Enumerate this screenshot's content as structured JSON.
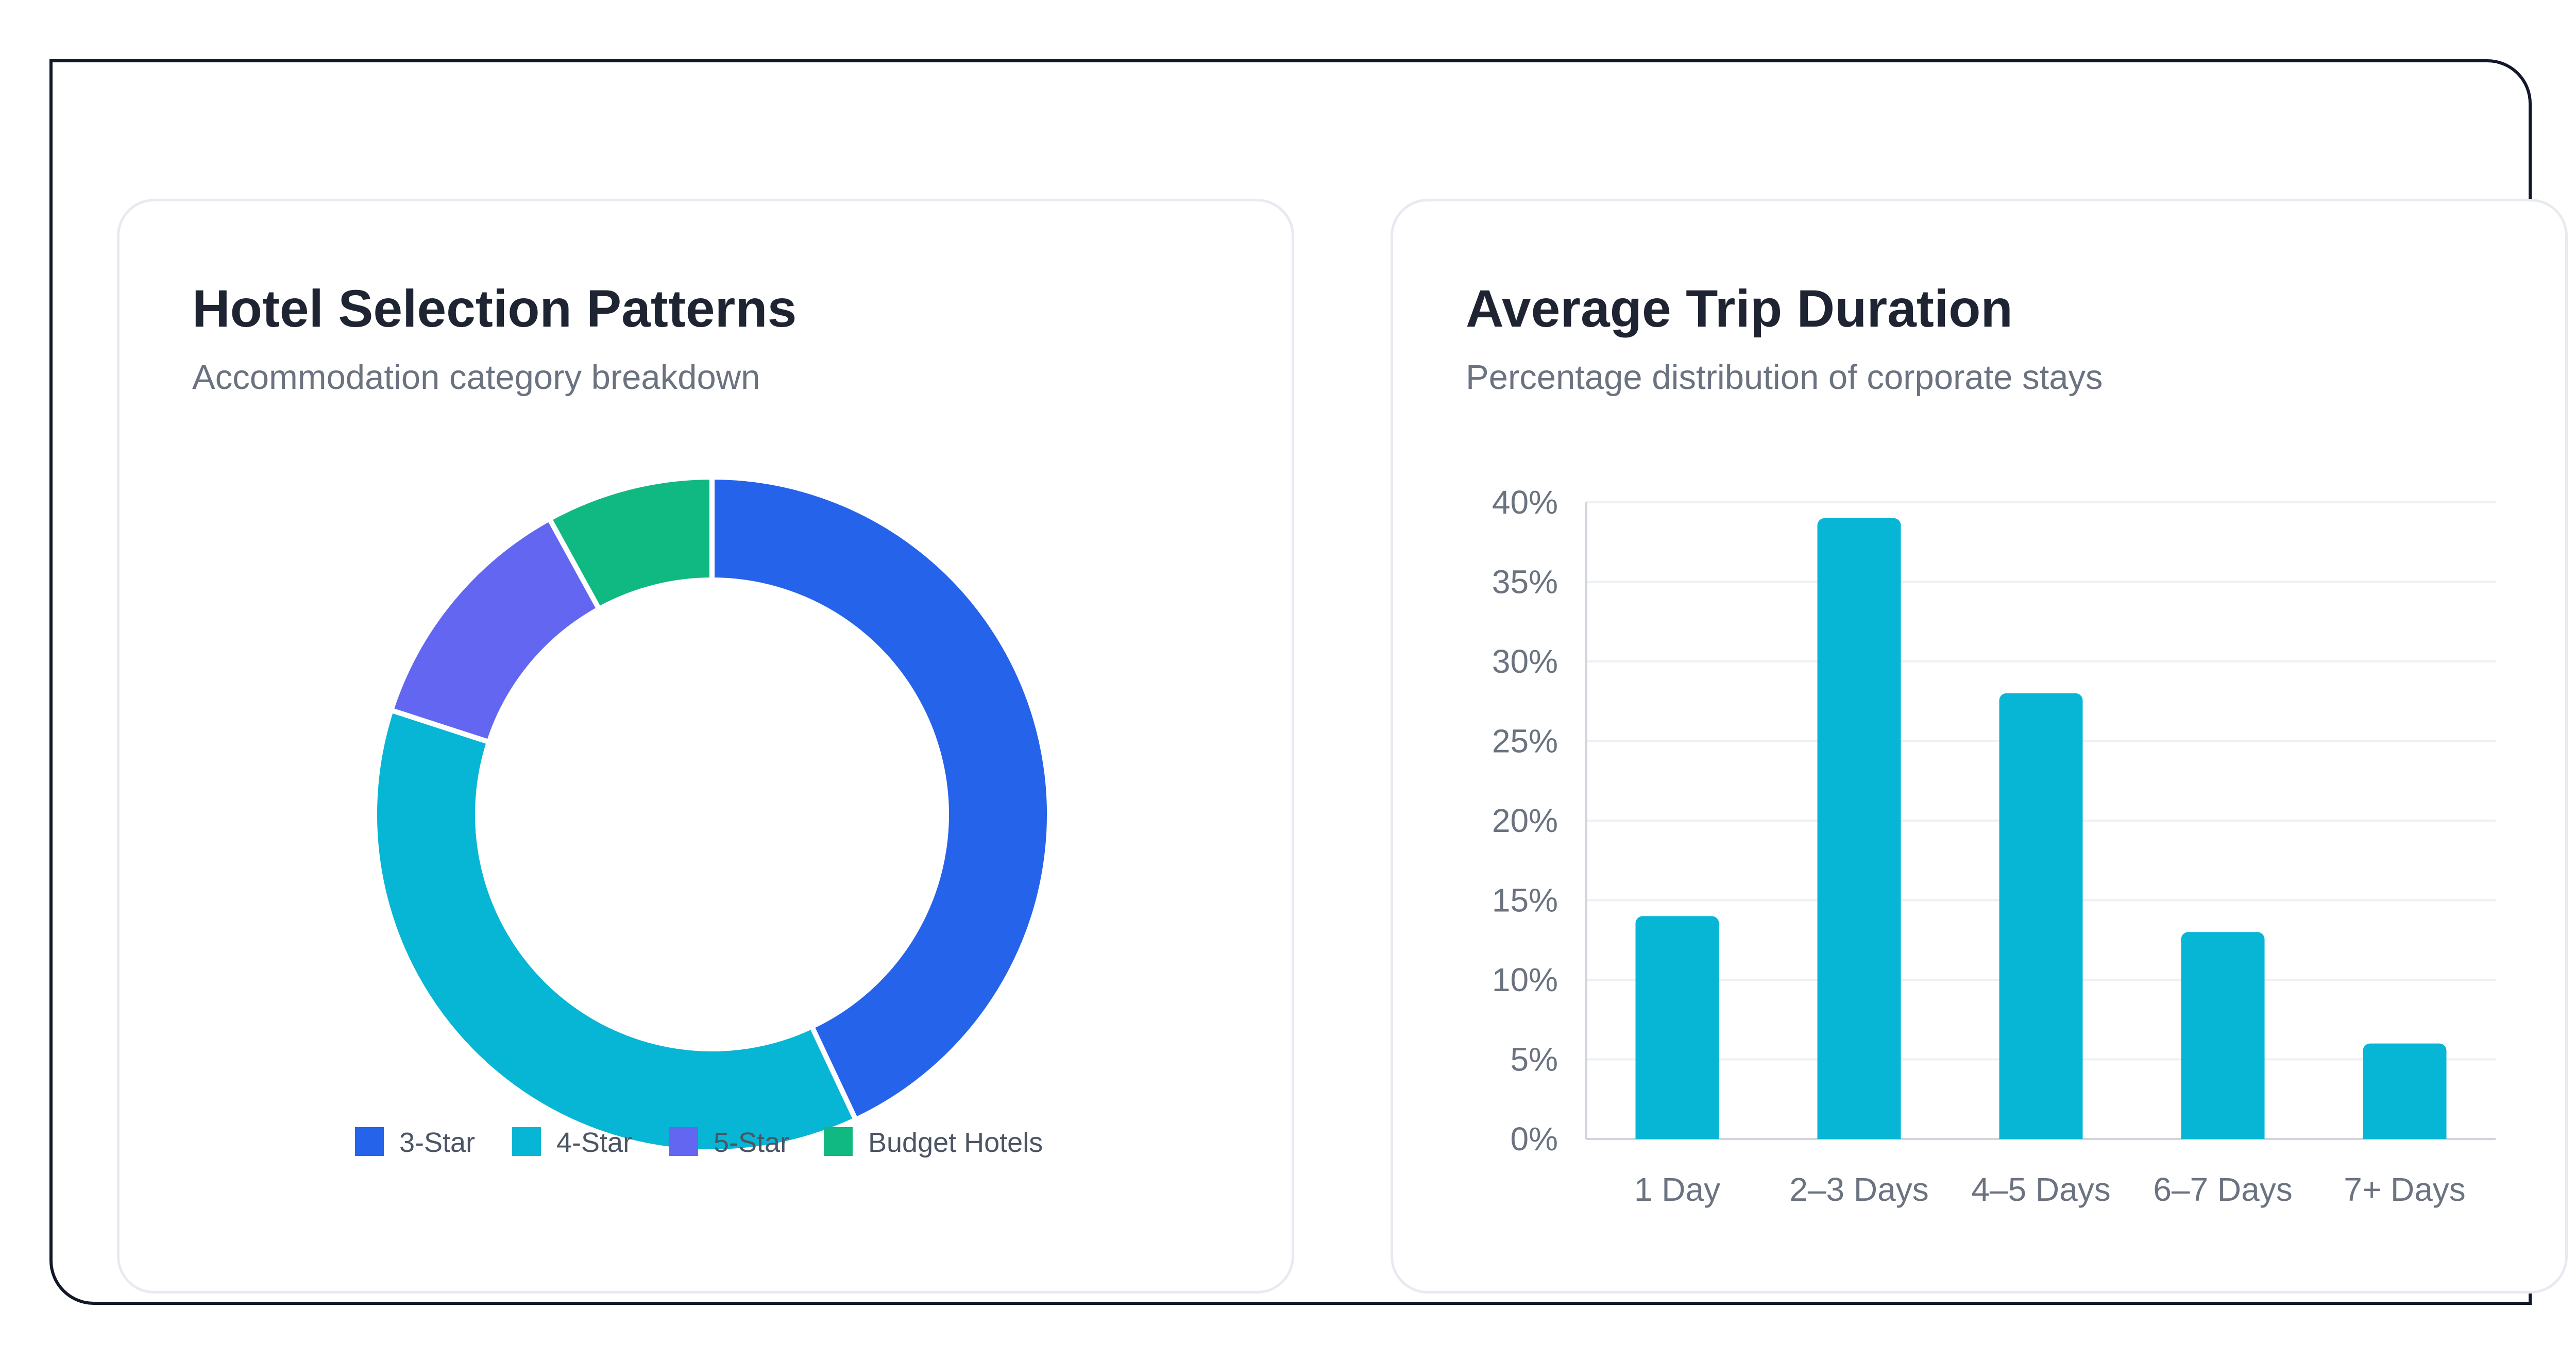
{
  "colors": {
    "three_star": "#2563eb",
    "four_star": "#06b6d4",
    "five_star": "#6366f1",
    "budget": "#10b981",
    "bar": "#06b6d4",
    "grid": "#eef0f3",
    "axis": "#d1d5db"
  },
  "hotel_card": {
    "title": "Hotel Selection Patterns",
    "subtitle": "Accommodation category breakdown"
  },
  "trip_card": {
    "title": "Average Trip Duration",
    "subtitle": "Percentage distribution of corporate stays"
  },
  "chart_data": [
    {
      "type": "pie",
      "donut": true,
      "title": "Hotel Selection Patterns",
      "subtitle": "Accommodation category breakdown",
      "categories": [
        "3-Star",
        "4-Star",
        "5-Star",
        "Budget Hotels"
      ],
      "values": [
        43,
        37,
        12,
        8
      ],
      "legend": "bottom"
    },
    {
      "type": "bar",
      "title": "Average Trip Duration",
      "subtitle": "Percentage distribution of corporate stays",
      "categories": [
        "1 Day",
        "2–3 Days",
        "4–5 Days",
        "6–7 Days",
        "7+ Days"
      ],
      "values": [
        14,
        39,
        28,
        13,
        6
      ],
      "ylim": [
        0,
        40
      ],
      "yticks": [
        "0%",
        "5%",
        "10%",
        "15%",
        "20%",
        "25%",
        "30%",
        "35%",
        "40%"
      ],
      "grid": true
    }
  ]
}
